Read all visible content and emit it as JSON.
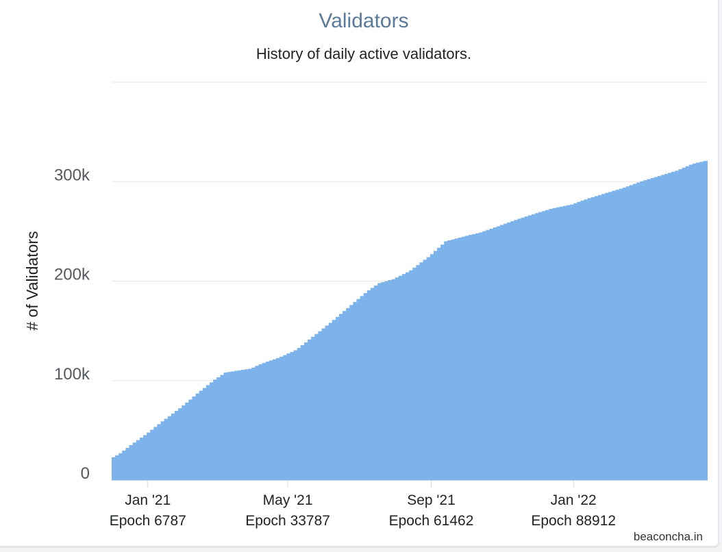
{
  "chart_data": {
    "type": "area",
    "title": "Validators",
    "subtitle": "History of daily active validators.",
    "ylabel": "# of Validators",
    "xlabel": "",
    "ylim": [
      0,
      400000
    ],
    "yticks": [
      {
        "value": 0,
        "label": "0"
      },
      {
        "value": 100000,
        "label": "100k"
      },
      {
        "value": 200000,
        "label": "200k"
      },
      {
        "value": 300000,
        "label": "300k"
      }
    ],
    "xticks": [
      {
        "date": "2021-01-01",
        "label": "Jan '21",
        "epoch_label": "Epoch 6787"
      },
      {
        "date": "2021-05-01",
        "label": "May '21",
        "epoch_label": "Epoch 33787"
      },
      {
        "date": "2021-09-01",
        "label": "Sep '21",
        "epoch_label": "Epoch 61462"
      },
      {
        "date": "2022-01-01",
        "label": "Jan '22",
        "epoch_label": "Epoch 88912"
      }
    ],
    "x_range": [
      "2020-12-01",
      "2022-04-26"
    ],
    "grid": true,
    "color": "#7cb3ea",
    "series": [
      {
        "values": [
          {
            "x": "2020-12-01",
            "y": 21000
          },
          {
            "x": "2020-12-10",
            "y": 27000
          },
          {
            "x": "2020-12-20",
            "y": 36000
          },
          {
            "x": "2021-01-01",
            "y": 46000
          },
          {
            "x": "2021-01-15",
            "y": 59000
          },
          {
            "x": "2021-02-01",
            "y": 74000
          },
          {
            "x": "2021-02-15",
            "y": 88000
          },
          {
            "x": "2021-03-01",
            "y": 101000
          },
          {
            "x": "2021-03-10",
            "y": 108000
          },
          {
            "x": "2021-03-20",
            "y": 110000
          },
          {
            "x": "2021-04-01",
            "y": 112000
          },
          {
            "x": "2021-04-10",
            "y": 117000
          },
          {
            "x": "2021-04-25",
            "y": 123000
          },
          {
            "x": "2021-05-10",
            "y": 131000
          },
          {
            "x": "2021-05-25",
            "y": 145000
          },
          {
            "x": "2021-06-10",
            "y": 160000
          },
          {
            "x": "2021-06-25",
            "y": 175000
          },
          {
            "x": "2021-07-10",
            "y": 190000
          },
          {
            "x": "2021-07-20",
            "y": 198000
          },
          {
            "x": "2021-08-01",
            "y": 202000
          },
          {
            "x": "2021-08-15",
            "y": 210000
          },
          {
            "x": "2021-09-01",
            "y": 225000
          },
          {
            "x": "2021-09-15",
            "y": 240000
          },
          {
            "x": "2021-10-01",
            "y": 245000
          },
          {
            "x": "2021-10-15",
            "y": 249000
          },
          {
            "x": "2021-11-01",
            "y": 256000
          },
          {
            "x": "2021-11-15",
            "y": 262000
          },
          {
            "x": "2021-12-01",
            "y": 268000
          },
          {
            "x": "2021-12-15",
            "y": 273000
          },
          {
            "x": "2022-01-01",
            "y": 277000
          },
          {
            "x": "2022-01-15",
            "y": 283000
          },
          {
            "x": "2022-02-01",
            "y": 289000
          },
          {
            "x": "2022-02-15",
            "y": 294000
          },
          {
            "x": "2022-03-01",
            "y": 300000
          },
          {
            "x": "2022-03-15",
            "y": 305000
          },
          {
            "x": "2022-04-01",
            "y": 311000
          },
          {
            "x": "2022-04-15",
            "y": 318000
          },
          {
            "x": "2022-04-26",
            "y": 321000
          }
        ]
      }
    ]
  },
  "credit": "beaconcha.in"
}
